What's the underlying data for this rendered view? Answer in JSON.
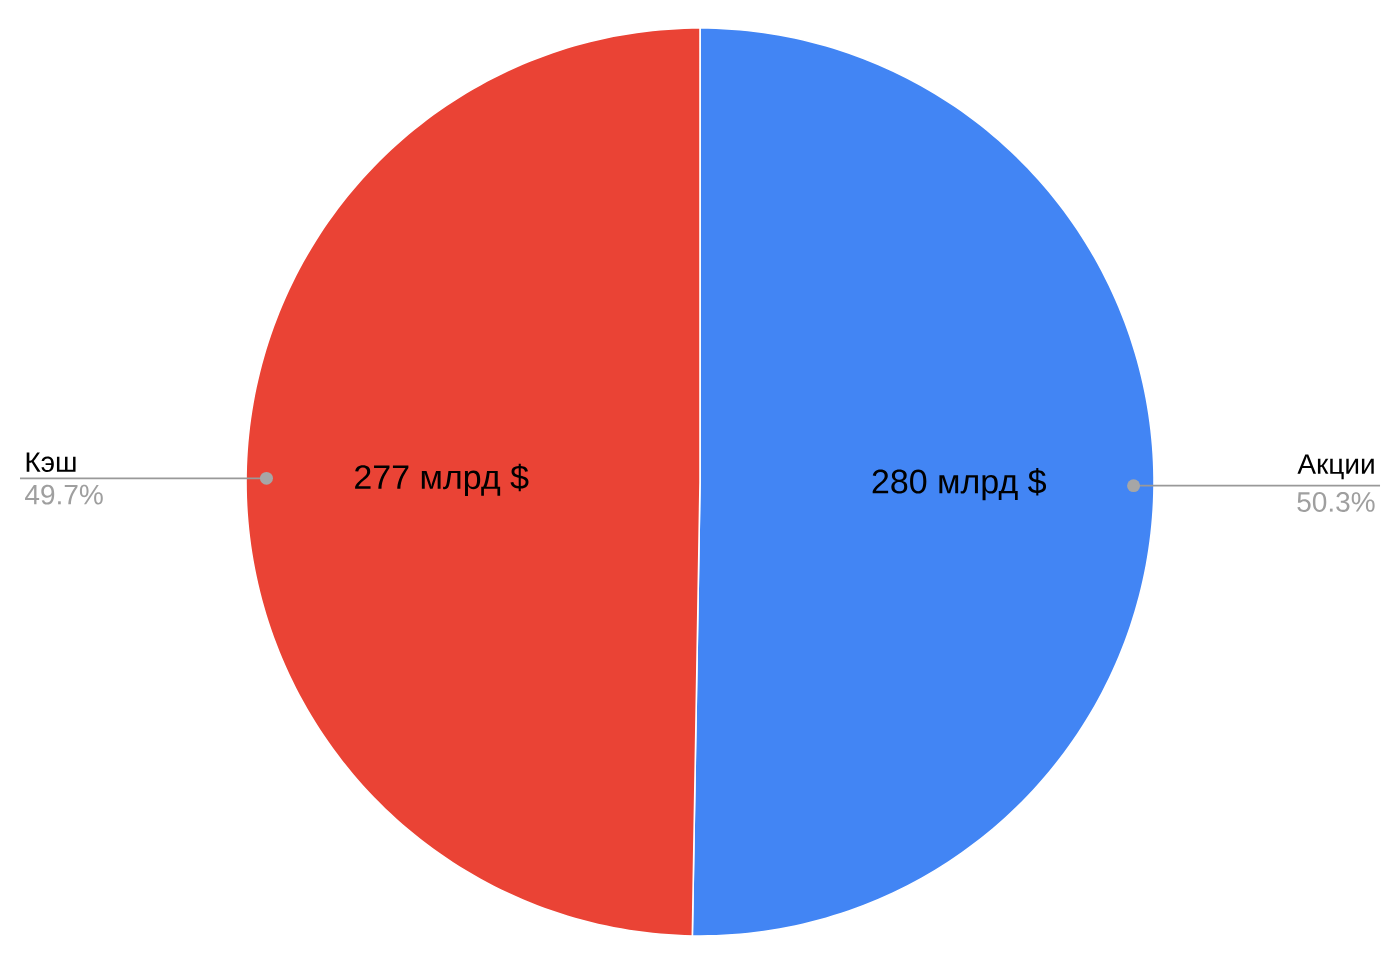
{
  "chart_data": {
    "type": "pie",
    "categories": [
      "Акции",
      "Кэш"
    ],
    "values": [
      280,
      277
    ],
    "colors": [
      "#4285f4",
      "#ea4335"
    ],
    "value_labels": [
      "280 млрд $",
      "277 млрд $"
    ],
    "annotations": [
      "50.3%",
      "49.7%"
    ]
  }
}
